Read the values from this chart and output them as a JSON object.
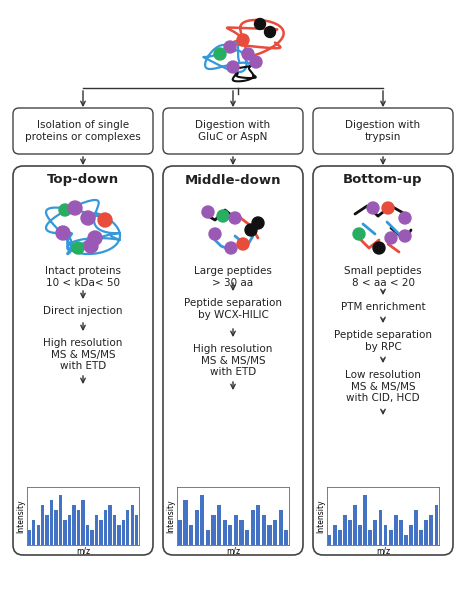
{
  "bg_color": "#ffffff",
  "box_edge_color": "#444444",
  "arrow_color": "#333333",
  "text_color": "#222222",
  "col_titles": [
    "Top-down",
    "Middle-down",
    "Bottom-up"
  ],
  "top_box_texts": [
    "Isolation of single\nproteins or complexes",
    "Digestion with\nGluC or AspN",
    "Digestion with\ntrypsin"
  ],
  "col1_texts": [
    "Intact proteins\n10 < kDa< 50",
    "Direct injection",
    "High resolution\nMS & MS/MS\nwith ETD"
  ],
  "col2_texts": [
    "Large peptides\n> 30 aa",
    "Peptide separation\nby WCX-HILIC",
    "High resolution\nMS & MS/MS\nwith ETD"
  ],
  "col3_texts": [
    "Small peptides\n8 < aa < 20",
    "PTM enrichment",
    "Peptide separation\nby RPC",
    "Low resolution\nMS & MS/MS\nwith CID, HCD"
  ],
  "purple": "#9B59B6",
  "green": "#27AE60",
  "red": "#E74C3C",
  "black": "#111111",
  "blue": "#3498DB",
  "ms_bar_color": "#4472C4",
  "bars1": [
    0.3,
    0.5,
    0.4,
    0.8,
    0.6,
    0.9,
    0.7,
    1.0,
    0.5,
    0.6,
    0.8,
    0.7,
    0.9,
    0.4,
    0.3,
    0.6,
    0.5,
    0.7,
    0.8,
    0.6,
    0.4,
    0.5,
    0.7,
    0.8,
    0.6
  ],
  "bars2": [
    0.5,
    0.9,
    0.4,
    0.7,
    1.0,
    0.3,
    0.6,
    0.8,
    0.5,
    0.4,
    0.6,
    0.5,
    0.3,
    0.7,
    0.8,
    0.6,
    0.4,
    0.5,
    0.7,
    0.3
  ],
  "bars3": [
    0.2,
    0.4,
    0.3,
    0.6,
    0.5,
    0.8,
    0.4,
    1.0,
    0.3,
    0.5,
    0.7,
    0.4,
    0.3,
    0.6,
    0.5,
    0.2,
    0.4,
    0.7,
    0.3,
    0.5,
    0.6,
    0.8
  ]
}
